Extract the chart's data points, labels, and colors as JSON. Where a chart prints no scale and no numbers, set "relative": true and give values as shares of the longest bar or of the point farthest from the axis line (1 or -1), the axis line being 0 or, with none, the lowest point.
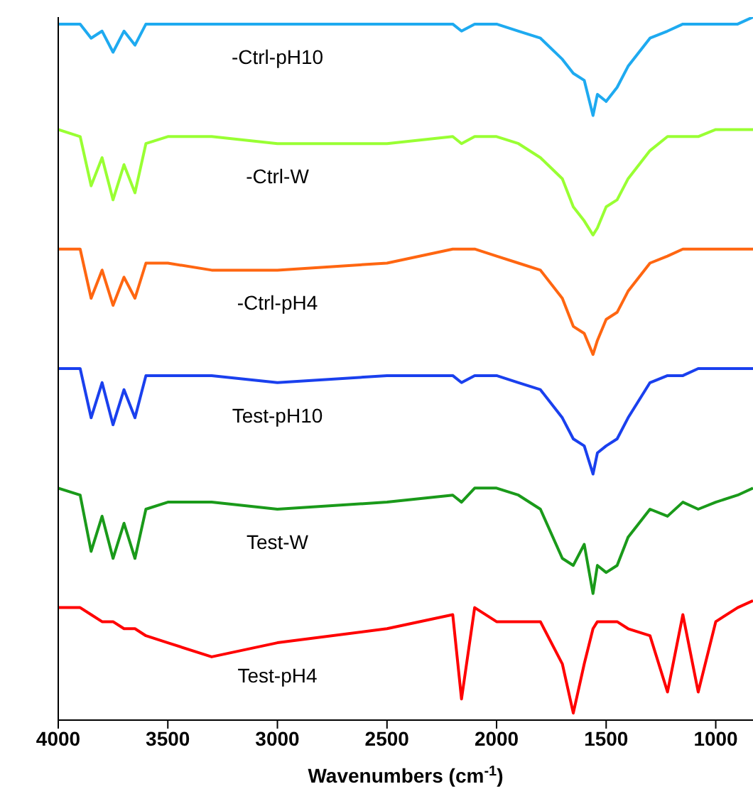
{
  "chart_data": {
    "type": "line",
    "relative": true,
    "xlabel": "Wavenumbers (cm$^{-1}$)",
    "xlim": [
      4000,
      830
    ],
    "xticks": [
      4000,
      3500,
      3000,
      2500,
      2000,
      1500,
      1000
    ],
    "grid": false,
    "legend": false,
    "marker": "none",
    "line_style": "solid",
    "x": [
      4000,
      3900,
      3850,
      3800,
      3750,
      3700,
      3650,
      3600,
      3500,
      3300,
      3000,
      2500,
      2200,
      2160,
      2100,
      2000,
      1900,
      1800,
      1700,
      1650,
      1600,
      1560,
      1540,
      1500,
      1450,
      1400,
      1300,
      1220,
      1150,
      1080,
      1000,
      900,
      830
    ],
    "series": [
      {
        "name": "-Ctrl-pH10",
        "color": "#1eaaf0",
        "values": [
          0.99,
          0.99,
          0.97,
          0.98,
          0.95,
          0.98,
          0.96,
          0.99,
          0.99,
          0.99,
          0.99,
          0.99,
          0.99,
          0.98,
          0.99,
          0.99,
          0.98,
          0.97,
          0.94,
          0.92,
          0.91,
          0.86,
          0.89,
          0.88,
          0.9,
          0.93,
          0.97,
          0.98,
          0.99,
          0.99,
          0.99,
          0.99,
          1
        ]
      },
      {
        "name": "-Ctrl-W",
        "color": "#99ff33",
        "values": [
          0.84,
          0.83,
          0.76,
          0.8,
          0.74,
          0.79,
          0.75,
          0.82,
          0.83,
          0.83,
          0.82,
          0.82,
          0.83,
          0.82,
          0.83,
          0.83,
          0.82,
          0.8,
          0.77,
          0.73,
          0.71,
          0.69,
          0.7,
          0.73,
          0.74,
          0.77,
          0.81,
          0.83,
          0.83,
          0.83,
          0.84,
          0.84,
          0.84
        ]
      },
      {
        "name": "-Ctrl-pH4",
        "color": "#ff6611",
        "values": [
          0.67,
          0.67,
          0.6,
          0.64,
          0.59,
          0.63,
          0.6,
          0.65,
          0.65,
          0.64,
          0.64,
          0.65,
          0.67,
          0.67,
          0.67,
          0.66,
          0.65,
          0.64,
          0.6,
          0.56,
          0.55,
          0.52,
          0.54,
          0.57,
          0.58,
          0.61,
          0.65,
          0.66,
          0.67,
          0.67,
          0.67,
          0.67,
          0.67
        ]
      },
      {
        "name": "Test-pH10",
        "color": "#1a40ee",
        "values": [
          0.5,
          0.5,
          0.43,
          0.48,
          0.42,
          0.47,
          0.43,
          0.49,
          0.49,
          0.49,
          0.48,
          0.49,
          0.49,
          0.48,
          0.49,
          0.49,
          0.48,
          0.47,
          0.43,
          0.4,
          0.39,
          0.35,
          0.38,
          0.39,
          0.4,
          0.43,
          0.48,
          0.49,
          0.49,
          0.5,
          0.5,
          0.5,
          0.5
        ]
      },
      {
        "name": "Test-W",
        "color": "#1a9a1a",
        "values": [
          0.33,
          0.32,
          0.24,
          0.29,
          0.23,
          0.28,
          0.23,
          0.3,
          0.31,
          0.31,
          0.3,
          0.31,
          0.32,
          0.31,
          0.33,
          0.33,
          0.32,
          0.3,
          0.23,
          0.22,
          0.25,
          0.18,
          0.22,
          0.21,
          0.22,
          0.26,
          0.3,
          0.29,
          0.31,
          0.3,
          0.31,
          0.32,
          0.33
        ]
      },
      {
        "name": "Test-pH4",
        "color": "#ff0000",
        "values": [
          0.16,
          0.16,
          0.15,
          0.14,
          0.14,
          0.13,
          0.13,
          0.12,
          0.11,
          0.09,
          0.11,
          0.13,
          0.15,
          0.03,
          0.16,
          0.14,
          0.14,
          0.14,
          0.08,
          0.01,
          0.08,
          0.13,
          0.14,
          0.14,
          0.14,
          0.13,
          0.12,
          0.04,
          0.15,
          0.04,
          0.14,
          0.16,
          0.17
        ]
      }
    ]
  }
}
